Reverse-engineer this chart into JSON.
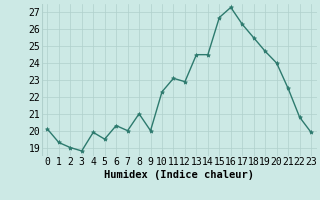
{
  "x": [
    0,
    1,
    2,
    3,
    4,
    5,
    6,
    7,
    8,
    9,
    10,
    11,
    12,
    13,
    14,
    15,
    16,
    17,
    18,
    19,
    20,
    21,
    22,
    23
  ],
  "y": [
    20.1,
    19.3,
    19.0,
    18.8,
    19.9,
    19.5,
    20.3,
    20.0,
    21.0,
    20.0,
    22.3,
    23.1,
    22.9,
    24.5,
    24.5,
    26.7,
    27.3,
    26.3,
    25.5,
    24.7,
    24.0,
    22.5,
    20.8,
    19.9
  ],
  "line_color": "#2d7a6e",
  "marker": "*",
  "marker_size": 3,
  "bg_color": "#cce9e5",
  "grid_color": "#b0d0cc",
  "xlabel": "Humidex (Indice chaleur)",
  "ylabel_ticks": [
    19,
    20,
    21,
    22,
    23,
    24,
    25,
    26,
    27
  ],
  "xlim": [
    -0.5,
    23.5
  ],
  "ylim": [
    18.5,
    27.5
  ],
  "xlabel_fontsize": 7.5,
  "tick_fontsize": 7,
  "linewidth": 1.0
}
